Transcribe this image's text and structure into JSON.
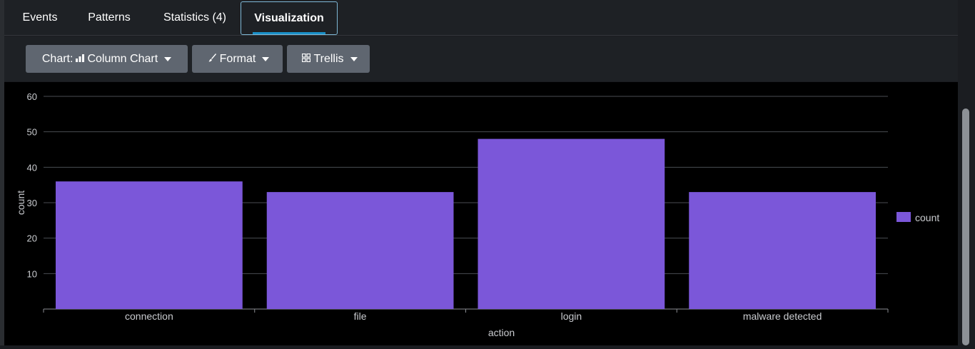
{
  "tabs": [
    {
      "label": "Events",
      "active": false
    },
    {
      "label": "Patterns",
      "active": false
    },
    {
      "label": "Statistics (4)",
      "active": false
    },
    {
      "label": "Visualization",
      "active": true
    }
  ],
  "toolbar": {
    "chart_label": "Chart:",
    "chart_type": "Column Chart",
    "format_label": "Format",
    "trellis_label": "Trellis"
  },
  "colors": {
    "bar": "#7b57d9",
    "accent": "#1a90c8",
    "background": "#000000",
    "gridline": "#4a4d52",
    "text": "#c9cbcf"
  },
  "chart_data": {
    "type": "bar",
    "categories": [
      "connection",
      "file",
      "login",
      "malware detected"
    ],
    "series": [
      {
        "name": "count",
        "values": [
          36,
          33,
          48,
          33
        ]
      }
    ],
    "xlabel": "action",
    "ylabel": "count",
    "ylim": [
      0,
      60
    ],
    "yticks": [
      10,
      20,
      30,
      40,
      50,
      60
    ],
    "grid": true,
    "legend": "right"
  }
}
